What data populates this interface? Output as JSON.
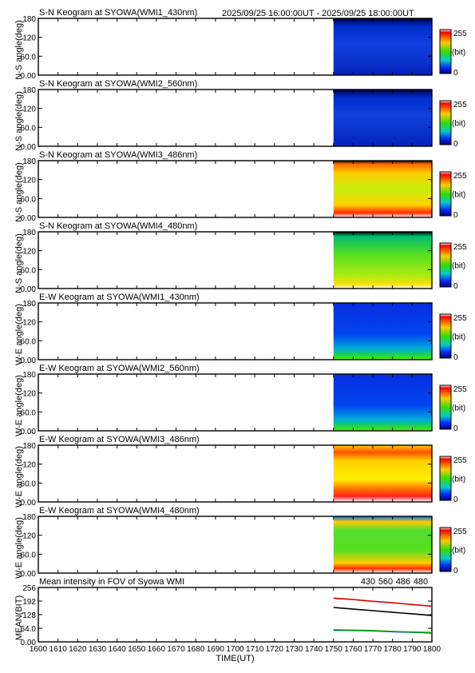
{
  "header": {
    "time_range": "2025/09/25 16:00:00UT - 2025/09/25 18:00:00UT"
  },
  "colorbar": {
    "max_label": "255",
    "unit_label": "(bit)",
    "min_label": "0"
  },
  "chart_data": [
    {
      "type": "heatmap",
      "title": "S-N Keogram at SYOWA(WMI1_430nm)",
      "ylabel": "N-S angle(deg)",
      "yticks": [
        "180",
        "120",
        "60.0",
        "0.00"
      ],
      "ylim": [
        0,
        180
      ],
      "xlim": [
        1600,
        1800
      ],
      "data_start": 1750,
      "dominant_color": "blue",
      "pattern": "dark-blue-top"
    },
    {
      "type": "heatmap",
      "title": "S-N Keogram at SYOWA(WMI2_560nm)",
      "ylabel": "N-S angle(deg)",
      "yticks": [
        "180",
        "120",
        "60.0",
        "0.00"
      ],
      "ylim": [
        0,
        180
      ],
      "xlim": [
        1600,
        1800
      ],
      "data_start": 1750,
      "dominant_color": "blue",
      "pattern": "dark-blue-top"
    },
    {
      "type": "heatmap",
      "title": "S-N Keogram at SYOWA(WMI3_486nm)",
      "ylabel": "N-S angle(deg)",
      "yticks": [
        "180",
        "120",
        "60.0",
        "0.00"
      ],
      "ylim": [
        0,
        180
      ],
      "xlim": [
        1600,
        1800
      ],
      "data_start": 1750,
      "dominant_color": "yellow-green",
      "pattern": "bright-bottom"
    },
    {
      "type": "heatmap",
      "title": "S-N Keogram at SYOWA(WMI4_480nm)",
      "ylabel": "N-S angle(deg)",
      "yticks": [
        "180",
        "120",
        "60.0",
        "0.00"
      ],
      "ylim": [
        0,
        180
      ],
      "xlim": [
        1600,
        1800
      ],
      "data_start": 1750,
      "dominant_color": "green",
      "pattern": "green-yellow-bottom"
    },
    {
      "type": "heatmap",
      "title": "E-W Keogram at SYOWA(WMI1_430nm)",
      "ylabel": "W-E angle(deg)",
      "yticks": [
        "180",
        "120",
        "60.0",
        "0.00"
      ],
      "ylim": [
        0,
        180
      ],
      "xlim": [
        1600,
        1800
      ],
      "data_start": 1750,
      "dominant_color": "blue",
      "pattern": "blue-green-bottom"
    },
    {
      "type": "heatmap",
      "title": "E-W Keogram at SYOWA(WMI2_560nm)",
      "ylabel": "W-E angle(deg)",
      "yticks": [
        "180",
        "120",
        "60.0",
        "0.00"
      ],
      "ylim": [
        0,
        180
      ],
      "xlim": [
        1600,
        1800
      ],
      "data_start": 1750,
      "dominant_color": "blue",
      "pattern": "blue-green-bottom"
    },
    {
      "type": "heatmap",
      "title": "E-W Keogram at SYOWA(WMI3_486nm)",
      "ylabel": "W-E angle(deg)",
      "yticks": [
        "180",
        "120",
        "60.0",
        "0.00"
      ],
      "ylim": [
        0,
        180
      ],
      "xlim": [
        1600,
        1800
      ],
      "data_start": 1750,
      "dominant_color": "yellow",
      "pattern": "red-bands"
    },
    {
      "type": "heatmap",
      "title": "E-W Keogram at SYOWA(WMI4_480nm)",
      "ylabel": "W-E angle(deg)",
      "yticks": [
        "180",
        "120",
        "60.0",
        "0.00"
      ],
      "ylim": [
        0,
        180
      ],
      "xlim": [
        1600,
        1800
      ],
      "data_start": 1750,
      "dominant_color": "green",
      "pattern": "green-red-bottom"
    },
    {
      "type": "line",
      "title": "Mean intensity in FOV of Syowa WMI",
      "ylabel": "MEAN(BIT)",
      "xlabel": "TIME(UT)",
      "xlim": [
        1600,
        1800
      ],
      "ylim": [
        0,
        256
      ],
      "yticks": [
        "256",
        "192",
        "128",
        "64.0",
        "0.00"
      ],
      "xticks": [
        "1600",
        "1610",
        "1620",
        "1630",
        "1640",
        "1650",
        "1660",
        "1670",
        "1680",
        "1690",
        "1700",
        "1710",
        "1720",
        "1730",
        "1740",
        "1750",
        "1760",
        "1770",
        "1780",
        "1790",
        "1800"
      ],
      "series": [
        {
          "name": "430",
          "color": "#0000cc",
          "x": [
            1750,
            1760,
            1770,
            1780,
            1790,
            1800
          ],
          "y": [
            55,
            54,
            52,
            48,
            45,
            42
          ]
        },
        {
          "name": "560",
          "color": "#00aa00",
          "x": [
            1750,
            1760,
            1770,
            1780,
            1790,
            1800
          ],
          "y": [
            57,
            55,
            53,
            49,
            46,
            44
          ]
        },
        {
          "name": "486",
          "color": "#dd0000",
          "x": [
            1750,
            1760,
            1770,
            1780,
            1790,
            1800
          ],
          "y": [
            206,
            199,
            191,
            184,
            176,
            168
          ]
        },
        {
          "name": "480",
          "color": "#000000",
          "x": [
            1750,
            1760,
            1770,
            1780,
            1790,
            1800
          ],
          "y": [
            162,
            154,
            147,
            139,
            132,
            124
          ]
        }
      ]
    }
  ]
}
